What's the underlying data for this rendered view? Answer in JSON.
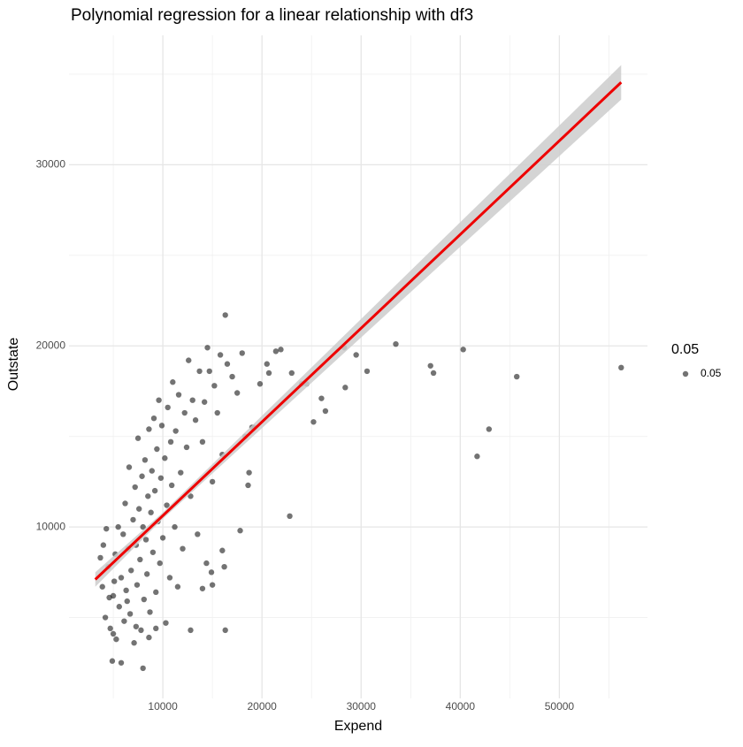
{
  "chart_data": {
    "type": "scatter",
    "title": "Polynomial regression for a linear relationship with df3",
    "x_label": "Expend",
    "y_label": "Outstate",
    "xlim": [
      534,
      58885
    ],
    "ylim": [
      536,
      37144
    ],
    "xticks": [
      10000,
      20000,
      30000,
      40000,
      50000
    ],
    "yticks": [
      10000,
      20000,
      30000
    ],
    "grid": true,
    "legend": {
      "title": "0.05",
      "position": "right"
    },
    "series": [
      {
        "name": "0.05",
        "color": "#000000",
        "opacity": 0.55,
        "x": [
          16300,
          33500,
          40300,
          56233,
          45700,
          37300,
          37000,
          42900,
          41700,
          29500,
          28300,
          30600,
          28400,
          26000,
          26400,
          25200,
          24000,
          24500,
          23000,
          22800,
          21900,
          21400,
          20500,
          20700,
          19800,
          19000,
          18700,
          18600,
          17800,
          16300,
          12800,
          8000,
          5800,
          4900,
          16200,
          14900,
          14000,
          15000,
          16000,
          14400,
          19200,
          4000,
          4200,
          4500,
          4700,
          5000,
          5200,
          5300,
          5500,
          5600,
          5800,
          6000,
          6100,
          6200,
          6300,
          6500,
          6600,
          6700,
          6800,
          7000,
          7100,
          7200,
          7300,
          7400,
          7500,
          7600,
          7700,
          7800,
          7900,
          8000,
          8100,
          8200,
          8300,
          8400,
          8500,
          8600,
          8700,
          8800,
          8900,
          9000,
          9100,
          9200,
          9300,
          9400,
          9500,
          9600,
          9700,
          9800,
          9900,
          10000,
          10200,
          10300,
          10400,
          10500,
          10700,
          10800,
          10900,
          11000,
          11200,
          11300,
          11500,
          11600,
          11800,
          12000,
          12200,
          12400,
          12600,
          12800,
          13000,
          13300,
          13500,
          13700,
          14000,
          14200,
          14500,
          14700,
          15000,
          15200,
          15500,
          15800,
          16000,
          16500,
          17000,
          17500,
          18000,
          18300,
          3700,
          3900,
          4300,
          4600,
          5100,
          6400,
          7300,
          8600,
          9300,
          5000
        ],
        "y": [
          21700,
          20100,
          19800,
          18800,
          18300,
          18500,
          18900,
          15400,
          13900,
          19500,
          19900,
          18600,
          17700,
          17100,
          16400,
          15800,
          17900,
          17900,
          18500,
          10600,
          19800,
          19700,
          19000,
          18500,
          17900,
          15500,
          13000,
          12300,
          9800,
          4300,
          4300,
          2200,
          2500,
          2600,
          7800,
          7500,
          6600,
          6800,
          8700,
          8000,
          15500,
          9000,
          5000,
          7800,
          4400,
          6200,
          8500,
          3800,
          10000,
          5600,
          7200,
          9600,
          4800,
          11300,
          6500,
          8800,
          13300,
          5200,
          7600,
          10400,
          3600,
          12200,
          9000,
          6800,
          14900,
          11000,
          8200,
          4300,
          12800,
          10000,
          6000,
          13700,
          9300,
          7400,
          11700,
          15400,
          5300,
          10800,
          13100,
          8600,
          16000,
          12000,
          6400,
          14300,
          10300,
          17000,
          8000,
          12700,
          15600,
          9400,
          13800,
          4700,
          11200,
          16600,
          7200,
          14700,
          12300,
          18000,
          10000,
          15300,
          6700,
          17300,
          13000,
          8800,
          16300,
          14400,
          19200,
          11700,
          17000,
          15900,
          9600,
          18600,
          14700,
          16900,
          19900,
          18600,
          12500,
          17800,
          16300,
          19500,
          14000,
          19000,
          18300,
          17400,
          19600,
          15000,
          8300,
          6700,
          9900,
          6100,
          7000,
          5900,
          4500,
          3900,
          4400,
          4100
        ]
      }
    ],
    "fit": {
      "color": "#ee0000",
      "band_color": "#cccccc",
      "x": [
        3186,
        10000,
        56233
      ],
      "values": [
        7100,
        10626,
        34550
      ],
      "lower": [
        6700,
        10450,
        33600
      ],
      "upper": [
        7500,
        10800,
        35500
      ]
    }
  }
}
